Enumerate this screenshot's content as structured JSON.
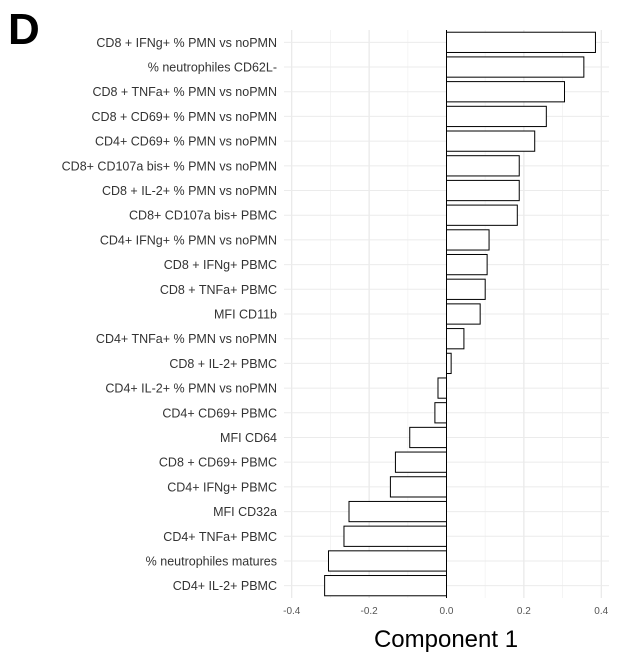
{
  "panel_letter": "D",
  "chart_data": {
    "type": "bar",
    "orientation": "horizontal",
    "title": "",
    "xlabel": "Component 1",
    "ylabel": "",
    "xlim": [
      -0.42,
      0.42
    ],
    "xticks": [
      -0.4,
      -0.2,
      0.0,
      0.2,
      0.4
    ],
    "xtick_labels": [
      "-0.4",
      "-0.2",
      "0.0",
      "0.2",
      "0.4"
    ],
    "grid": true,
    "bar_fill": "#ffffff",
    "bar_edge": "#000000",
    "categories": [
      "CD8 + IFNg+ % PMN vs noPMN",
      "% neutrophiles CD62L-",
      "CD8 + TNFa+ % PMN vs noPMN",
      "CD8 + CD69+ % PMN vs noPMN",
      "CD4+ CD69+ % PMN vs noPMN",
      "CD8+ CD107a bis+ % PMN vs noPMN",
      "CD8 + IL-2+ % PMN vs noPMN",
      "CD8+ CD107a bis+ PBMC",
      "CD4+ IFNg+ % PMN vs noPMN",
      "CD8 + IFNg+ PBMC",
      "CD8 + TNFa+ PBMC",
      "MFI CD11b",
      "CD4+ TNFa+ % PMN vs noPMN",
      "CD8 + IL-2+ PBMC",
      "CD4+ IL-2+ % PMN vs noPMN",
      "CD4+ CD69+ PBMC",
      "MFI CD64",
      "CD8 + CD69+ PBMC",
      "CD4+ IFNg+ PBMC",
      "MFI CD32a",
      "CD4+ TNFa+ PBMC",
      "% neutrophiles matures",
      "CD4+ IL-2+ PBMC"
    ],
    "values": [
      0.385,
      0.355,
      0.305,
      0.258,
      0.228,
      0.188,
      0.188,
      0.183,
      0.11,
      0.105,
      0.1,
      0.087,
      0.045,
      0.012,
      -0.022,
      -0.03,
      -0.095,
      -0.132,
      -0.145,
      -0.252,
      -0.265,
      -0.305,
      -0.315
    ]
  }
}
